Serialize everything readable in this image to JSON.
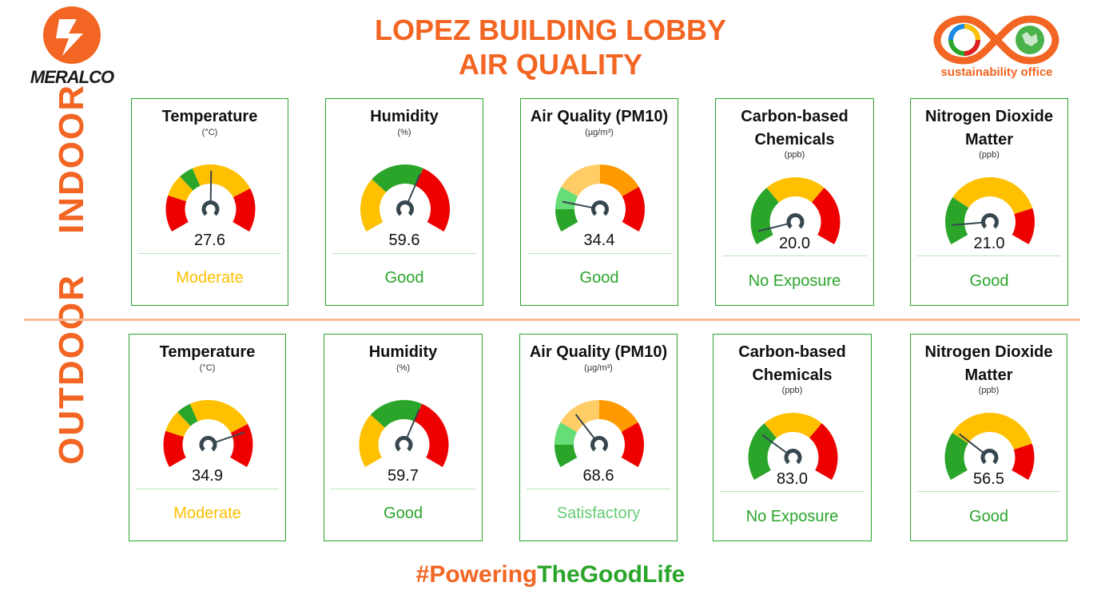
{
  "header": {
    "title_line1": "LOPEZ BUILDING LOBBY",
    "title_line2": "AIR QUALITY",
    "logo_left_text": "MERALCO",
    "logo_right_text": "sustainability office"
  },
  "sections": {
    "indoor_label": "INDOOR",
    "outdoor_label": "OUTDOOR"
  },
  "footer": {
    "part1": "#Powering",
    "part2": "TheGoodLife"
  },
  "colors": {
    "accent": "#f26522",
    "green": "#2aa52a",
    "yellow": "#ffc000",
    "red": "#ee0000",
    "orange": "#ff9900",
    "light_orange": "#ffcc66",
    "light_green": "#66dd77",
    "needle": "#37474f"
  },
  "gauge_scales": {
    "temperature": {
      "min": 15,
      "max": 40,
      "bands": [
        [
          15,
          20,
          "red"
        ],
        [
          20,
          23,
          "yellow"
        ],
        [
          23,
          25,
          "green"
        ],
        [
          25,
          34,
          "yellow"
        ],
        [
          34,
          40,
          "red"
        ]
      ]
    },
    "humidity": {
      "min": 0,
      "max": 100,
      "bands": [
        [
          0,
          30,
          "yellow"
        ],
        [
          30,
          60,
          "green"
        ],
        [
          60,
          100,
          "red"
        ]
      ]
    },
    "pm10": {
      "min": 0,
      "max": 200,
      "bands": [
        [
          0,
          25,
          "green"
        ],
        [
          25,
          50,
          "light_green"
        ],
        [
          50,
          100,
          "light_orange"
        ],
        [
          100,
          150,
          "orange"
        ],
        [
          150,
          200,
          "red"
        ]
      ]
    },
    "carbon": {
      "min": 0,
      "max": 300,
      "bands": [
        [
          0,
          100,
          "green"
        ],
        [
          100,
          200,
          "yellow"
        ],
        [
          200,
          300,
          "red"
        ]
      ]
    },
    "no2": {
      "min": 0,
      "max": 200,
      "bands": [
        [
          0,
          53,
          "green"
        ],
        [
          53,
          160,
          "yellow"
        ],
        [
          160,
          200,
          "red"
        ]
      ]
    }
  },
  "indoor": [
    {
      "title": "Temperature",
      "unit": "(°C)",
      "value": "27.6",
      "value_num": 27.6,
      "status": "Moderate",
      "status_color": "#ffc000",
      "scale": "temperature"
    },
    {
      "title": "Humidity",
      "unit": "(%)",
      "value": "59.6",
      "value_num": 59.6,
      "status": "Good",
      "status_color": "#2aa52a",
      "scale": "humidity"
    },
    {
      "title": "Air Quality (PM10)",
      "unit": "(µg/m³)",
      "value": "34.4",
      "value_num": 34.4,
      "status": "Good",
      "status_color": "#2aa52a",
      "scale": "pm10"
    },
    {
      "title": "Carbon-based Chemicals",
      "unit": "(ppb)",
      "value": "20.0",
      "value_num": 20.0,
      "status": "No Exposure",
      "status_color": "#2aa52a",
      "scale": "carbon"
    },
    {
      "title": "Nitrogen Dioxide Matter",
      "unit": "(ppb)",
      "value": "21.0",
      "value_num": 21.0,
      "status": "Good",
      "status_color": "#2aa52a",
      "scale": "no2"
    }
  ],
  "outdoor": [
    {
      "title": "Temperature",
      "unit": "(°C)",
      "value": "34.9",
      "value_num": 34.9,
      "status": "Moderate",
      "status_color": "#ffc000",
      "scale": "temperature"
    },
    {
      "title": "Humidity",
      "unit": "(%)",
      "value": "59.7",
      "value_num": 59.7,
      "status": "Good",
      "status_color": "#2aa52a",
      "scale": "humidity"
    },
    {
      "title": "Air Quality (PM10)",
      "unit": "(µg/m³)",
      "value": "68.6",
      "value_num": 68.6,
      "status": "Satisfactory",
      "status_color": "#66cc77",
      "scale": "pm10"
    },
    {
      "title": "Carbon-based Chemicals",
      "unit": "(ppb)",
      "value": "83.0",
      "value_num": 83.0,
      "status": "No Exposure",
      "status_color": "#2aa52a",
      "scale": "carbon"
    },
    {
      "title": "Nitrogen Dioxide Matter",
      "unit": "(ppb)",
      "value": "56.5",
      "value_num": 56.5,
      "status": "Good",
      "status_color": "#2aa52a",
      "scale": "no2"
    }
  ]
}
